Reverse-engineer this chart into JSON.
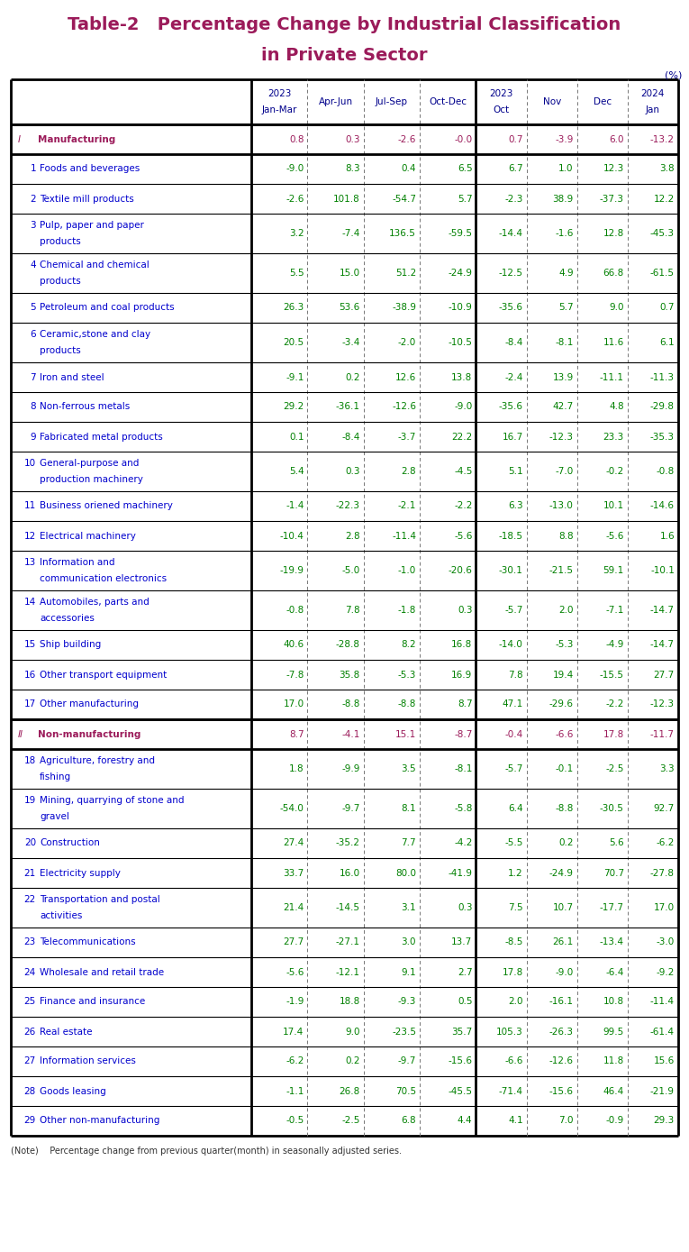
{
  "title_line1": "Table-2   Percentage Change by Industrial Classification",
  "title_line2": "in Private Sector",
  "title_color": "#9B1B5A",
  "unit_label": "(%)",
  "note": "(Note)    Percentage change from previous quarter(month) in seasonally adjusted series.",
  "rows": [
    {
      "label": "I  Manufacturing",
      "num": "I",
      "is_category": true,
      "values": [
        "0.8",
        "0.3",
        "-2.6",
        "-0.0",
        "0.7",
        "-3.9",
        "6.0",
        "-13.2"
      ]
    },
    {
      "label": "Foods and beverages",
      "num": "1",
      "is_category": false,
      "values": [
        "-9.0",
        "8.3",
        "0.4",
        "6.5",
        "6.7",
        "1.0",
        "12.3",
        "3.8"
      ]
    },
    {
      "label": "Textile mill products",
      "num": "2",
      "is_category": false,
      "values": [
        "-2.6",
        "101.8",
        "-54.7",
        "5.7",
        "-2.3",
        "38.9",
        "-37.3",
        "12.2"
      ]
    },
    {
      "label": "Pulp, paper and paper\nproducts",
      "num": "3",
      "is_category": false,
      "values": [
        "3.2",
        "-7.4",
        "136.5",
        "-59.5",
        "-14.4",
        "-1.6",
        "12.8",
        "-45.3"
      ]
    },
    {
      "label": "Chemical and chemical\nproducts",
      "num": "4",
      "is_category": false,
      "values": [
        "5.5",
        "15.0",
        "51.2",
        "-24.9",
        "-12.5",
        "4.9",
        "66.8",
        "-61.5"
      ]
    },
    {
      "label": "Petroleum and coal products",
      "num": "5",
      "is_category": false,
      "values": [
        "26.3",
        "53.6",
        "-38.9",
        "-10.9",
        "-35.6",
        "5.7",
        "9.0",
        "0.7"
      ]
    },
    {
      "label": "Ceramic,stone and clay\nproducts",
      "num": "6",
      "is_category": false,
      "values": [
        "20.5",
        "-3.4",
        "-2.0",
        "-10.5",
        "-8.4",
        "-8.1",
        "11.6",
        "6.1"
      ]
    },
    {
      "label": "Iron and steel",
      "num": "7",
      "is_category": false,
      "values": [
        "-9.1",
        "0.2",
        "12.6",
        "13.8",
        "-2.4",
        "13.9",
        "-11.1",
        "-11.3"
      ]
    },
    {
      "label": "Non-ferrous metals",
      "num": "8",
      "is_category": false,
      "values": [
        "29.2",
        "-36.1",
        "-12.6",
        "-9.0",
        "-35.6",
        "42.7",
        "4.8",
        "-29.8"
      ]
    },
    {
      "label": "Fabricated metal products",
      "num": "9",
      "is_category": false,
      "values": [
        "0.1",
        "-8.4",
        "-3.7",
        "22.2",
        "16.7",
        "-12.3",
        "23.3",
        "-35.3"
      ]
    },
    {
      "label": "General-purpose and\nproduction machinery",
      "num": "10",
      "is_category": false,
      "values": [
        "5.4",
        "0.3",
        "2.8",
        "-4.5",
        "5.1",
        "-7.0",
        "-0.2",
        "-0.8"
      ]
    },
    {
      "label": "Business oriened machinery",
      "num": "11",
      "is_category": false,
      "values": [
        "-1.4",
        "-22.3",
        "-2.1",
        "-2.2",
        "6.3",
        "-13.0",
        "10.1",
        "-14.6"
      ]
    },
    {
      "label": "Electrical machinery",
      "num": "12",
      "is_category": false,
      "values": [
        "-10.4",
        "2.8",
        "-11.4",
        "-5.6",
        "-18.5",
        "8.8",
        "-5.6",
        "1.6"
      ]
    },
    {
      "label": "Information and\ncommunication electronics",
      "num": "13",
      "is_category": false,
      "values": [
        "-19.9",
        "-5.0",
        "-1.0",
        "-20.6",
        "-30.1",
        "-21.5",
        "59.1",
        "-10.1"
      ]
    },
    {
      "label": "Automobiles, parts and\naccessories",
      "num": "14",
      "is_category": false,
      "values": [
        "-0.8",
        "7.8",
        "-1.8",
        "0.3",
        "-5.7",
        "2.0",
        "-7.1",
        "-14.7"
      ]
    },
    {
      "label": "Ship building",
      "num": "15",
      "is_category": false,
      "values": [
        "40.6",
        "-28.8",
        "8.2",
        "16.8",
        "-14.0",
        "-5.3",
        "-4.9",
        "-14.7"
      ]
    },
    {
      "label": "Other transport equipment",
      "num": "16",
      "is_category": false,
      "values": [
        "-7.8",
        "35.8",
        "-5.3",
        "16.9",
        "7.8",
        "19.4",
        "-15.5",
        "27.7"
      ]
    },
    {
      "label": "Other manufacturing",
      "num": "17",
      "is_category": false,
      "values": [
        "17.0",
        "-8.8",
        "-8.8",
        "8.7",
        "47.1",
        "-29.6",
        "-2.2",
        "-12.3"
      ]
    },
    {
      "label": "II  Non-manufacturing",
      "num": "II",
      "is_category": true,
      "values": [
        "8.7",
        "-4.1",
        "15.1",
        "-8.7",
        "-0.4",
        "-6.6",
        "17.8",
        "-11.7"
      ]
    },
    {
      "label": "Agriculture, forestry and\nfishing",
      "num": "18",
      "is_category": false,
      "values": [
        "1.8",
        "-9.9",
        "3.5",
        "-8.1",
        "-5.7",
        "-0.1",
        "-2.5",
        "3.3"
      ]
    },
    {
      "label": "Mining, quarrying of stone and\ngravel",
      "num": "19",
      "is_category": false,
      "values": [
        "-54.0",
        "-9.7",
        "8.1",
        "-5.8",
        "6.4",
        "-8.8",
        "-30.5",
        "92.7"
      ]
    },
    {
      "label": "Construction",
      "num": "20",
      "is_category": false,
      "values": [
        "27.4",
        "-35.2",
        "7.7",
        "-4.2",
        "-5.5",
        "0.2",
        "5.6",
        "-6.2"
      ]
    },
    {
      "label": "Electricity supply",
      "num": "21",
      "is_category": false,
      "values": [
        "33.7",
        "16.0",
        "80.0",
        "-41.9",
        "1.2",
        "-24.9",
        "70.7",
        "-27.8"
      ]
    },
    {
      "label": "Transportation and postal\nactivities",
      "num": "22",
      "is_category": false,
      "values": [
        "21.4",
        "-14.5",
        "3.1",
        "0.3",
        "7.5",
        "10.7",
        "-17.7",
        "17.0"
      ]
    },
    {
      "label": "Telecommunications",
      "num": "23",
      "is_category": false,
      "values": [
        "27.7",
        "-27.1",
        "3.0",
        "13.7",
        "-8.5",
        "26.1",
        "-13.4",
        "-3.0"
      ]
    },
    {
      "label": "Wholesale and retail trade",
      "num": "24",
      "is_category": false,
      "values": [
        "-5.6",
        "-12.1",
        "9.1",
        "2.7",
        "17.8",
        "-9.0",
        "-6.4",
        "-9.2"
      ]
    },
    {
      "label": "Finance and insurance",
      "num": "25",
      "is_category": false,
      "values": [
        "-1.9",
        "18.8",
        "-9.3",
        "0.5",
        "2.0",
        "-16.1",
        "10.8",
        "-11.4"
      ]
    },
    {
      "label": "Real estate",
      "num": "26",
      "is_category": false,
      "values": [
        "17.4",
        "9.0",
        "-23.5",
        "35.7",
        "105.3",
        "-26.3",
        "99.5",
        "-61.4"
      ]
    },
    {
      "label": "Information services",
      "num": "27",
      "is_category": false,
      "values": [
        "-6.2",
        "0.2",
        "-9.7",
        "-15.6",
        "-6.6",
        "-12.6",
        "11.8",
        "15.6"
      ]
    },
    {
      "label": "Goods leasing",
      "num": "28",
      "is_category": false,
      "values": [
        "-1.1",
        "26.8",
        "70.5",
        "-45.5",
        "-71.4",
        "-15.6",
        "46.4",
        "-21.9"
      ]
    },
    {
      "label": "Other non-manufacturing",
      "num": "29",
      "is_category": false,
      "values": [
        "-0.5",
        "-2.5",
        "6.8",
        "4.4",
        "4.1",
        "7.0",
        "-0.9",
        "29.3"
      ]
    }
  ],
  "header_labels": [
    "2023\nJan-Mar",
    "Apr-Jun",
    "Jul-Sep",
    "Oct-Dec",
    "2023\nOct",
    "Nov",
    "Dec",
    "2024\nJan"
  ],
  "category_color": "#9B1B5A",
  "data_category_color": "#9B1B5A",
  "data_normal_color": "#008000",
  "label_normal_color": "#0000CD",
  "label_num_color": "#0000CD",
  "header_color": "#00008B",
  "bg_color": "#FFFFFF"
}
